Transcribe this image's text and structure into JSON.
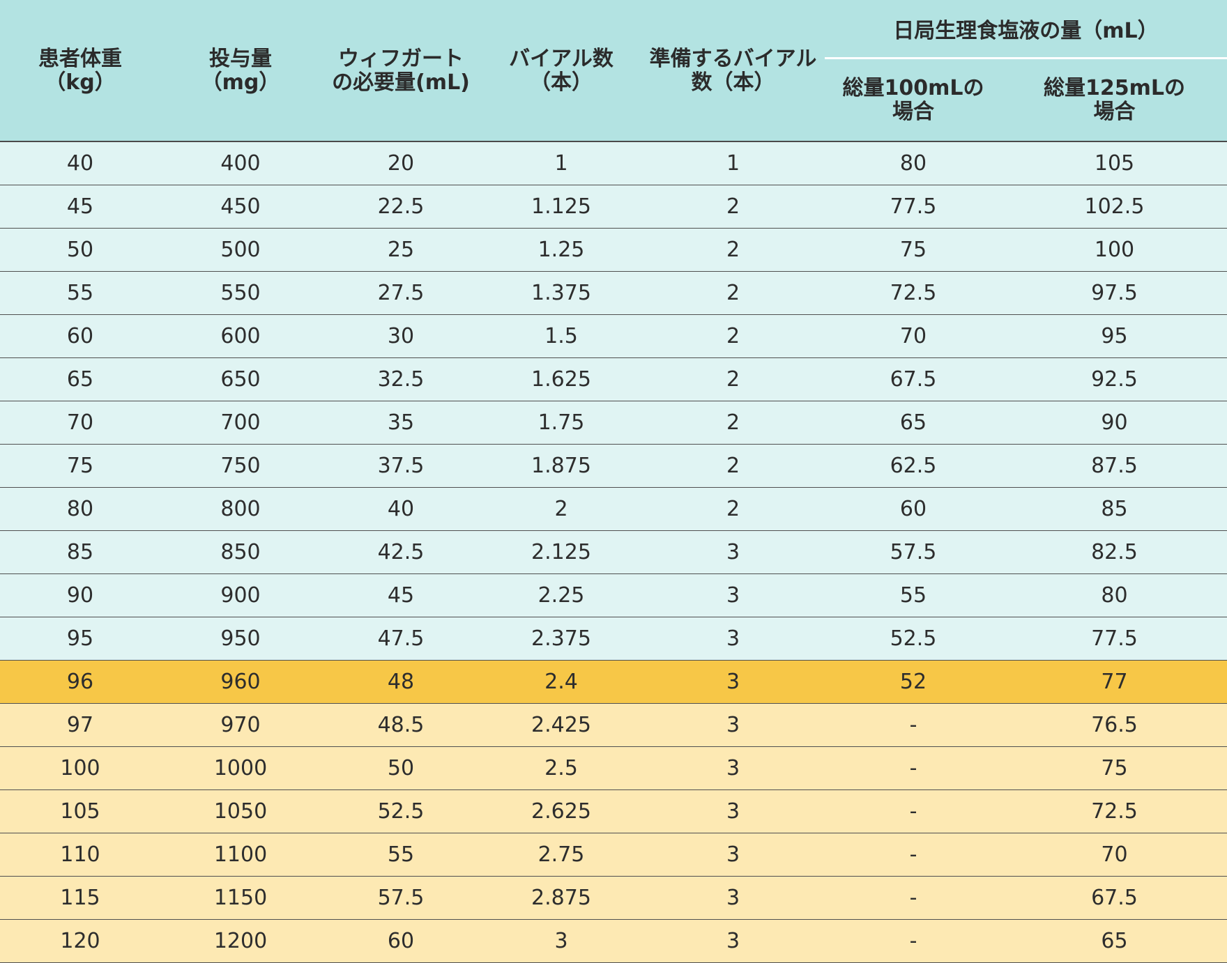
{
  "table": {
    "headers": {
      "weight": [
        "患者体重",
        "（kg）"
      ],
      "dose": [
        "投与量",
        "（mg）"
      ],
      "required": [
        "ウィフガート",
        "の必要量(mL)"
      ],
      "vials": [
        "バイアル数",
        "（本）"
      ],
      "prepare": [
        "準備するバイアル",
        "数（本）"
      ],
      "saline_group": "日局生理食塩液の量（mL）",
      "total100": [
        "総量100mLの",
        "場合"
      ],
      "total125": [
        "総量125mLの",
        "場合"
      ]
    },
    "rows": [
      {
        "weight": "40",
        "dose": "400",
        "required": "20",
        "vials": "1",
        "prepare": "1",
        "t100": "80",
        "t125": "105",
        "style": "normal"
      },
      {
        "weight": "45",
        "dose": "450",
        "required": "22.5",
        "vials": "1.125",
        "prepare": "2",
        "t100": "77.5",
        "t125": "102.5",
        "style": "normal"
      },
      {
        "weight": "50",
        "dose": "500",
        "required": "25",
        "vials": "1.25",
        "prepare": "2",
        "t100": "75",
        "t125": "100",
        "style": "normal"
      },
      {
        "weight": "55",
        "dose": "550",
        "required": "27.5",
        "vials": "1.375",
        "prepare": "2",
        "t100": "72.5",
        "t125": "97.5",
        "style": "normal"
      },
      {
        "weight": "60",
        "dose": "600",
        "required": "30",
        "vials": "1.5",
        "prepare": "2",
        "t100": "70",
        "t125": "95",
        "style": "normal"
      },
      {
        "weight": "65",
        "dose": "650",
        "required": "32.5",
        "vials": "1.625",
        "prepare": "2",
        "t100": "67.5",
        "t125": "92.5",
        "style": "normal"
      },
      {
        "weight": "70",
        "dose": "700",
        "required": "35",
        "vials": "1.75",
        "prepare": "2",
        "t100": "65",
        "t125": "90",
        "style": "normal"
      },
      {
        "weight": "75",
        "dose": "750",
        "required": "37.5",
        "vials": "1.875",
        "prepare": "2",
        "t100": "62.5",
        "t125": "87.5",
        "style": "normal"
      },
      {
        "weight": "80",
        "dose": "800",
        "required": "40",
        "vials": "2",
        "prepare": "2",
        "t100": "60",
        "t125": "85",
        "style": "normal"
      },
      {
        "weight": "85",
        "dose": "850",
        "required": "42.5",
        "vials": "2.125",
        "prepare": "3",
        "t100": "57.5",
        "t125": "82.5",
        "style": "normal"
      },
      {
        "weight": "90",
        "dose": "900",
        "required": "45",
        "vials": "2.25",
        "prepare": "3",
        "t100": "55",
        "t125": "80",
        "style": "normal"
      },
      {
        "weight": "95",
        "dose": "950",
        "required": "47.5",
        "vials": "2.375",
        "prepare": "3",
        "t100": "52.5",
        "t125": "77.5",
        "style": "normal"
      },
      {
        "weight": "96",
        "dose": "960",
        "required": "48",
        "vials": "2.4",
        "prepare": "3",
        "t100": "52",
        "t125": "77",
        "style": "highlight"
      },
      {
        "weight": "97",
        "dose": "970",
        "required": "48.5",
        "vials": "2.425",
        "prepare": "3",
        "t100": "-",
        "t125": "76.5",
        "style": "warm"
      },
      {
        "weight": "100",
        "dose": "1000",
        "required": "50",
        "vials": "2.5",
        "prepare": "3",
        "t100": "-",
        "t125": "75",
        "style": "warm"
      },
      {
        "weight": "105",
        "dose": "1050",
        "required": "52.5",
        "vials": "2.625",
        "prepare": "3",
        "t100": "-",
        "t125": "72.5",
        "style": "warm"
      },
      {
        "weight": "110",
        "dose": "1100",
        "required": "55",
        "vials": "2.75",
        "prepare": "3",
        "t100": "-",
        "t125": "70",
        "style": "warm"
      },
      {
        "weight": "115",
        "dose": "1150",
        "required": "57.5",
        "vials": "2.875",
        "prepare": "3",
        "t100": "-",
        "t125": "67.5",
        "style": "warm"
      },
      {
        "weight": "120",
        "dose": "1200",
        "required": "60",
        "vials": "3",
        "prepare": "3",
        "t100": "-",
        "t125": "65",
        "style": "warm"
      }
    ]
  },
  "colors": {
    "header_bg": "#b3e3e2",
    "row_bg": "#e0f4f3",
    "highlight_bg": "#f7c747",
    "warm_bg": "#fde9b3"
  }
}
